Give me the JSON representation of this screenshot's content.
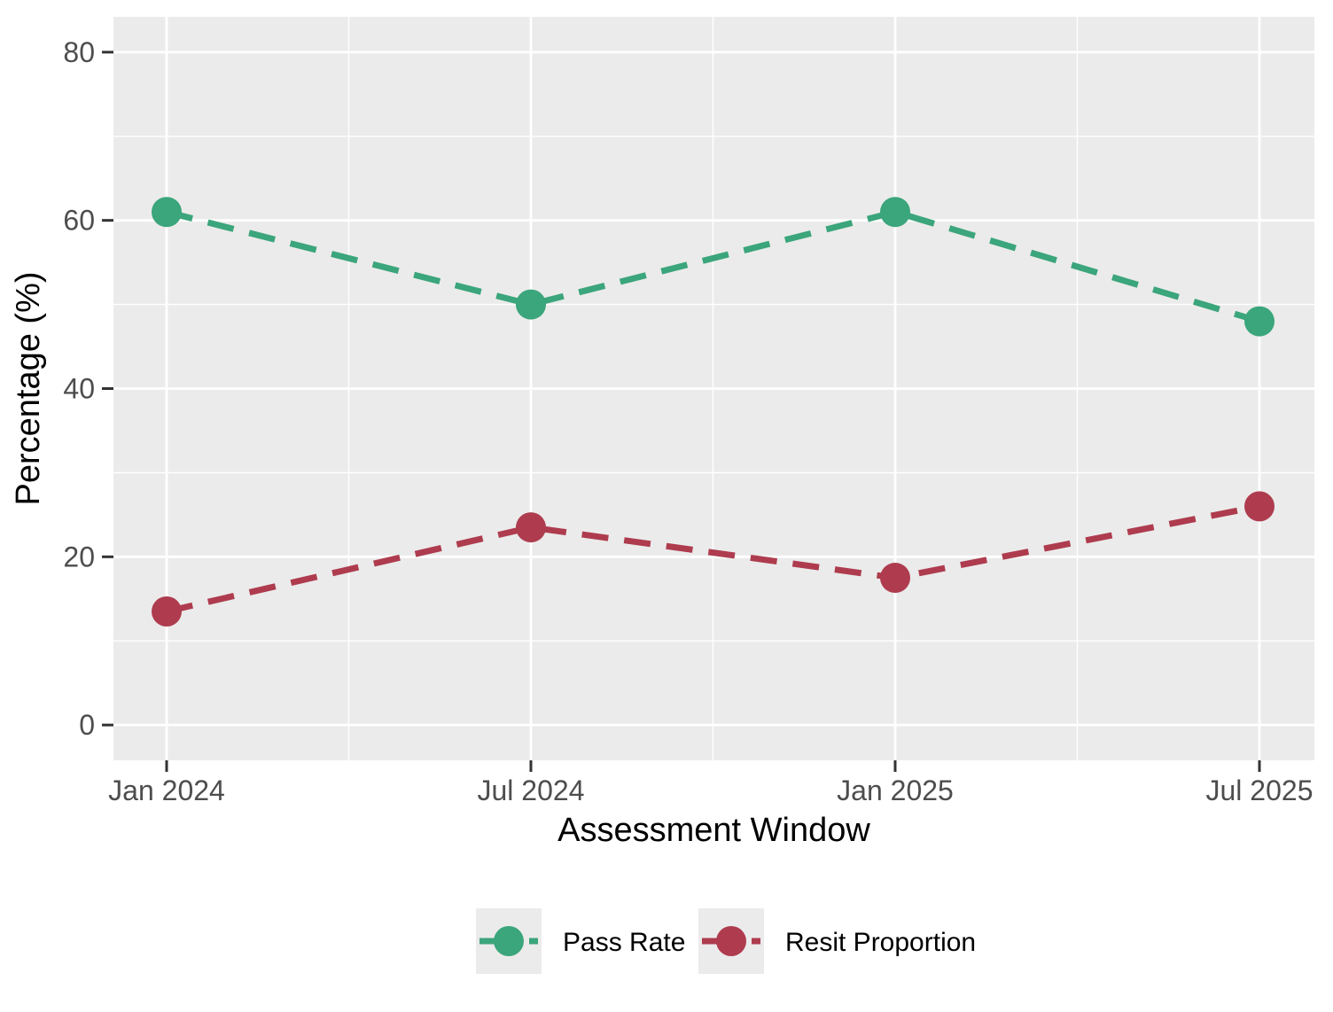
{
  "chart_data": {
    "type": "line",
    "categories": [
      "Jan 2024",
      "Jul 2024",
      "Jan 2025",
      "Jul 2025"
    ],
    "series": [
      {
        "name": "Pass Rate",
        "values": [
          61,
          50,
          61,
          48
        ],
        "color": "#3BA57B"
      },
      {
        "name": "Resit Proportion",
        "values": [
          13.5,
          23.5,
          17.5,
          26
        ],
        "color": "#AE3C4E"
      }
    ],
    "xlabel": "Assessment Window",
    "ylabel": "Percentage (%)",
    "axis": {
      "ylim": [
        -4.2,
        84.2
      ],
      "yticks": [
        0,
        20,
        40,
        60,
        80
      ],
      "yticks_minor": [
        10,
        30,
        50,
        70
      ]
    },
    "grid": true,
    "line_style": "dashed",
    "marker": "circle",
    "legend": {
      "position": "bottom",
      "entries": [
        "Pass Rate",
        "Resit Proportion"
      ]
    },
    "style": {
      "panel_background": "#EBEBEB",
      "gridline_color": "#FFFFFF",
      "tick_mark_color": "#333333",
      "tick_label_color": "#4D4D4D",
      "axis_title_color": "#000000",
      "legend_key_background": "#EBEBEB",
      "legend_label_color": "#000000"
    }
  }
}
